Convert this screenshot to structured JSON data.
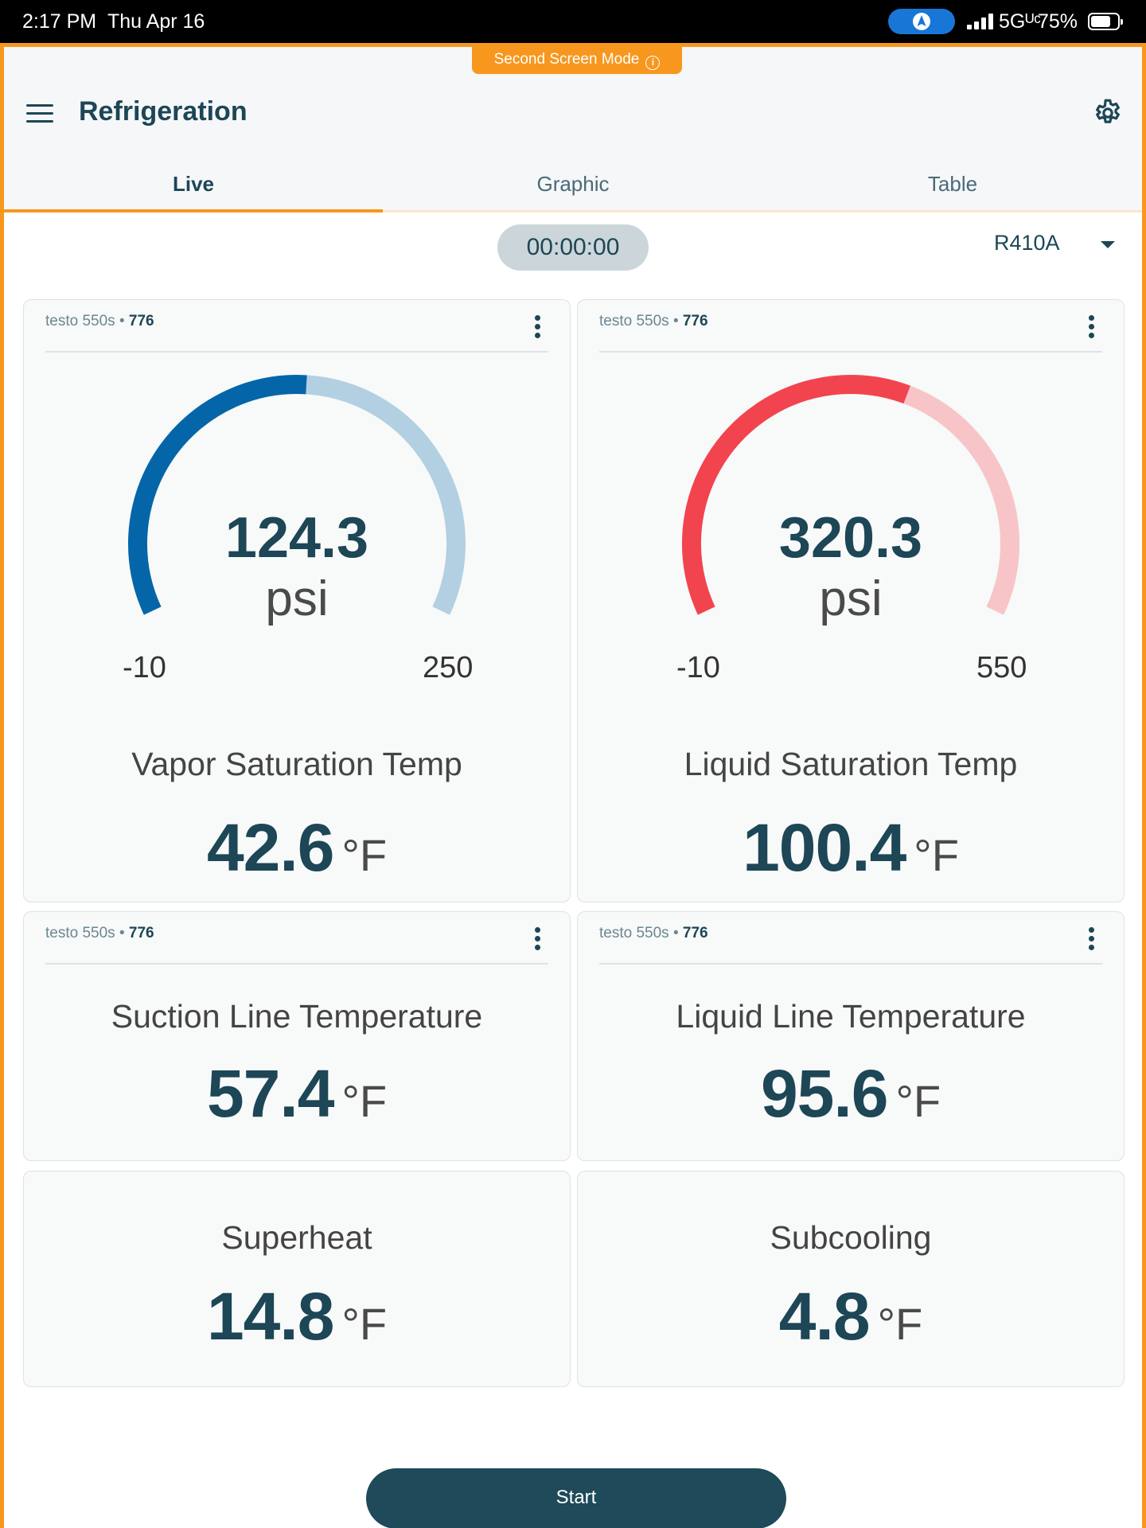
{
  "status_bar": {
    "time": "2:17 PM",
    "date": "Thu Apr 16",
    "network": "5Gᵁᶜ",
    "battery_pct": "75%",
    "battery_level": 0.75
  },
  "banner": {
    "label": "Second Screen Mode",
    "info_icon": "i"
  },
  "header": {
    "title": "Refrigeration",
    "menu_icon": "menu-icon",
    "settings_icon": "gear-icon"
  },
  "tabs": [
    {
      "label": "Live",
      "active": true
    },
    {
      "label": "Graphic",
      "active": false
    },
    {
      "label": "Table",
      "active": false
    }
  ],
  "timer": "00:00:00",
  "refrigerant": "R410A",
  "cards": {
    "vapor": {
      "device": "testo 550s",
      "sep": "•",
      "serial": "776",
      "gauge": {
        "value": "124.3",
        "unit": "psi",
        "min": "-10",
        "max": "250",
        "fraction": 0.515,
        "color": "#0466a8",
        "track": "#b2d0e2"
      },
      "label": "Vapor Saturation Temp",
      "reading": "42.6",
      "unit": "°F"
    },
    "liquid": {
      "device": "testo 550s",
      "sep": "•",
      "serial": "776",
      "gauge": {
        "value": "320.3",
        "unit": "psi",
        "min": "-10",
        "max": "550",
        "fraction": 0.59,
        "color": "#f2444e",
        "track": "#f7c5c8"
      },
      "label": "Liquid Saturation Temp",
      "reading": "100.4",
      "unit": "°F"
    },
    "suction": {
      "device": "testo 550s",
      "sep": "•",
      "serial": "776",
      "label": "Suction Line Temperature",
      "reading": "57.4",
      "unit": "°F"
    },
    "liquid_line": {
      "device": "testo 550s",
      "sep": "•",
      "serial": "776",
      "label": "Liquid Line Temperature",
      "reading": "95.6",
      "unit": "°F"
    },
    "superheat": {
      "label": "Superheat",
      "reading": "14.8",
      "unit": "°F"
    },
    "subcooling": {
      "label": "Subcooling",
      "reading": "4.8",
      "unit": "°F"
    }
  },
  "start_button": "Start"
}
